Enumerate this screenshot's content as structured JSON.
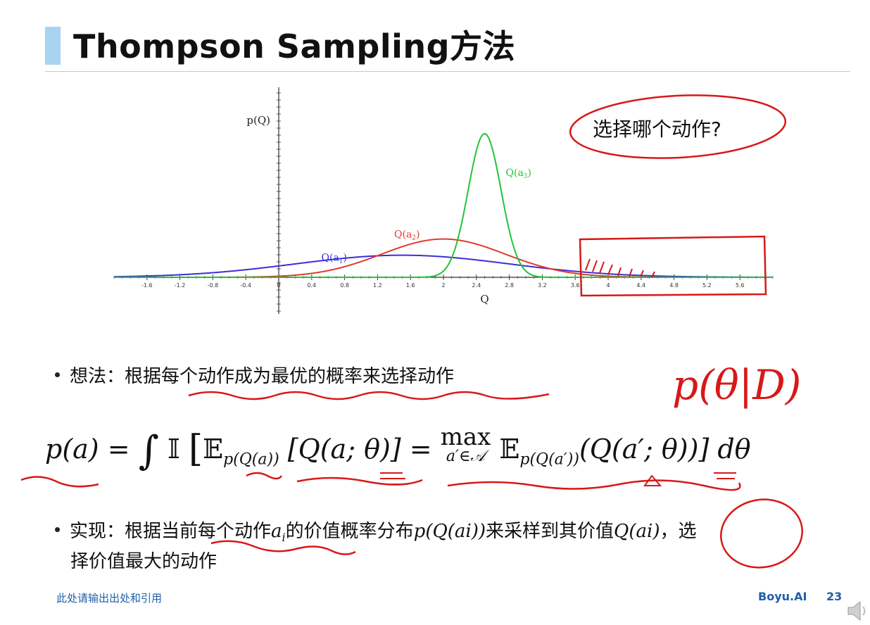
{
  "slide": {
    "title": "Thompson Sampling方法",
    "bullet1": "想法：根据每个动作成为最优的概率来选择动作",
    "formula": {
      "lhs": "p(a) =",
      "integral": "∫",
      "indicator": "𝕀",
      "expect1": "𝔼",
      "sub1": "p(Q(a))",
      "mid": "[Q(a; θ)] =",
      "max": "max",
      "max_sub": "a′∈𝒜",
      "expect2": "𝔼",
      "sub2": "p(Q(a′))",
      "inner": "(Q(a′; θ))",
      "close": "] dθ"
    },
    "bullet2": {
      "part1": "实现：根据当前每个动作",
      "ai": "a",
      "ai_sub": "i",
      "part2": "的价值概率分布",
      "dist": "p(Q(ai))",
      "part3": "来采样到其价值",
      "val": "Q(ai)",
      "part4": "，选",
      "part5": "择价值最大的动作"
    },
    "annotations": {
      "bubble": "选择哪个动作?",
      "handwritten": "p(θ|D)"
    },
    "footer": {
      "note": "此处请输出出处和引用",
      "brand": "Boyu.AI",
      "page": "23"
    },
    "icons": {
      "speaker": "speaker-icon"
    }
  },
  "chart_data": {
    "type": "line",
    "xlabel": "Q",
    "ylabel": "p(Q)",
    "xlim": [
      -2,
      6
    ],
    "x_ticks": [
      "-1.6",
      "-1.2",
      "-0.8",
      "-0.4",
      "0",
      "0.4",
      "0.8",
      "1.2",
      "1.6",
      "2",
      "2.4",
      "2.8",
      "3.2",
      "3.6",
      "4",
      "4.4",
      "4.8",
      "5.2",
      "5.6"
    ],
    "ylim": [
      0,
      1.0
    ],
    "series": [
      {
        "name": "Q(a1)",
        "name_base": "Q(a",
        "name_sub": "1",
        "color": "#3b2fd6",
        "mean": 1.5,
        "std": 1.3
      },
      {
        "name": "Q(a2)",
        "name_base": "Q(a",
        "name_sub": "2",
        "color": "#e03a2a",
        "mean": 2.0,
        "std": 0.75
      },
      {
        "name": "Q(a3)",
        "name_base": "Q(a",
        "name_sub": "3",
        "color": "#22c43a",
        "mean": 2.5,
        "std": 0.2
      }
    ]
  }
}
